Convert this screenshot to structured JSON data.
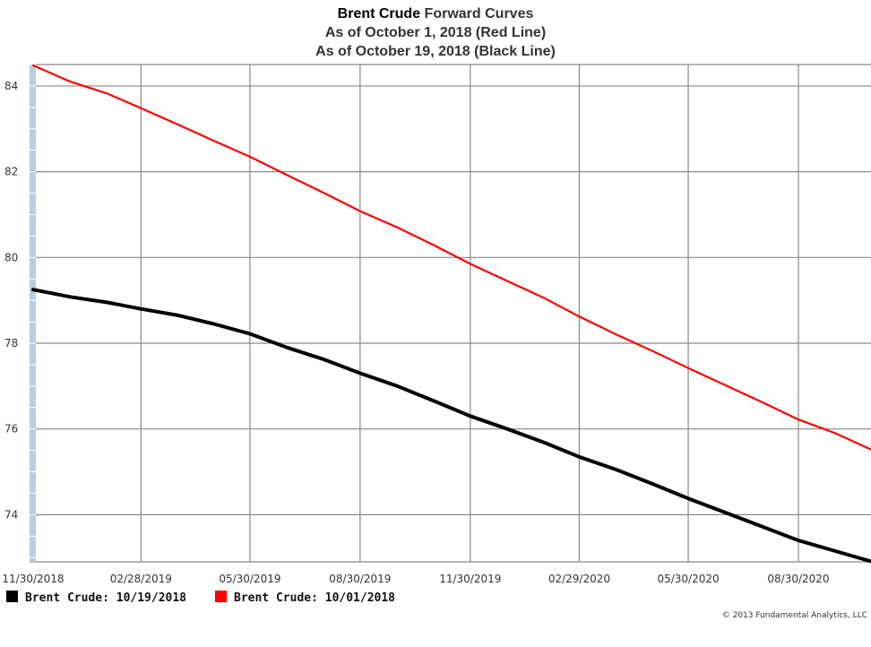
{
  "chart_data": {
    "type": "line",
    "title_part1": "Brent Crude",
    "title_part2": "Forward Curves",
    "subtitle_1": "As of October 1, 2018 (Red Line)",
    "subtitle_2": "As of October 19, 2018 (Black Line)",
    "xlabel": "",
    "ylabel": "",
    "x_ticks": [
      "11/30/2018",
      "02/28/2019",
      "05/30/2019",
      "08/30/2019",
      "11/30/2019",
      "02/29/2020",
      "05/30/2020",
      "08/30/2020"
    ],
    "x_range": [
      "11/30/2018",
      "12/31/2020"
    ],
    "y_ticks": [
      74,
      76,
      78,
      80,
      82,
      84
    ],
    "ylim": [
      72.9,
      84.5
    ],
    "grid": true,
    "legend_position": "bottom-left",
    "series": [
      {
        "name": "Brent Crude: 10/19/2018",
        "color": "#000000",
        "points": [
          [
            "11/30/2018",
            79.25
          ],
          [
            "12/31/2018",
            79.08
          ],
          [
            "01/31/2019",
            78.95
          ],
          [
            "02/28/2019",
            78.8
          ],
          [
            "03/31/2019",
            78.65
          ],
          [
            "04/30/2019",
            78.45
          ],
          [
            "05/30/2019",
            78.22
          ],
          [
            "06/30/2019",
            77.9
          ],
          [
            "07/31/2019",
            77.62
          ],
          [
            "08/30/2019",
            77.3
          ],
          [
            "09/30/2019",
            77.0
          ],
          [
            "10/31/2019",
            76.65
          ],
          [
            "11/30/2019",
            76.3
          ],
          [
            "12/31/2019",
            76.0
          ],
          [
            "01/31/2020",
            75.68
          ],
          [
            "02/29/2020",
            75.35
          ],
          [
            "03/31/2020",
            75.05
          ],
          [
            "04/30/2020",
            74.72
          ],
          [
            "05/30/2020",
            74.38
          ],
          [
            "06/30/2020",
            74.05
          ],
          [
            "07/31/2020",
            73.72
          ],
          [
            "08/30/2020",
            73.4
          ],
          [
            "09/30/2020",
            73.15
          ],
          [
            "10/31/2020",
            72.9
          ]
        ]
      },
      {
        "name": "Brent Crude: 10/01/2018",
        "color": "#ff0000",
        "points": [
          [
            "11/30/2018",
            84.48
          ],
          [
            "12/31/2018",
            84.1
          ],
          [
            "01/31/2019",
            83.82
          ],
          [
            "02/28/2019",
            83.48
          ],
          [
            "03/31/2019",
            83.1
          ],
          [
            "04/30/2019",
            82.72
          ],
          [
            "05/30/2019",
            82.35
          ],
          [
            "06/30/2019",
            81.92
          ],
          [
            "07/31/2019",
            81.5
          ],
          [
            "08/30/2019",
            81.08
          ],
          [
            "09/30/2019",
            80.7
          ],
          [
            "10/31/2019",
            80.28
          ],
          [
            "11/30/2019",
            79.85
          ],
          [
            "12/31/2019",
            79.45
          ],
          [
            "01/31/2020",
            79.05
          ],
          [
            "02/29/2020",
            78.62
          ],
          [
            "03/31/2020",
            78.2
          ],
          [
            "04/30/2020",
            77.82
          ],
          [
            "05/30/2020",
            77.42
          ],
          [
            "06/30/2020",
            77.02
          ],
          [
            "07/31/2020",
            76.62
          ],
          [
            "08/30/2020",
            76.22
          ],
          [
            "09/30/2020",
            75.9
          ],
          [
            "10/31/2020",
            75.5
          ]
        ]
      }
    ]
  },
  "copyright": "© 2013 Fundamental Analytics, LLC"
}
